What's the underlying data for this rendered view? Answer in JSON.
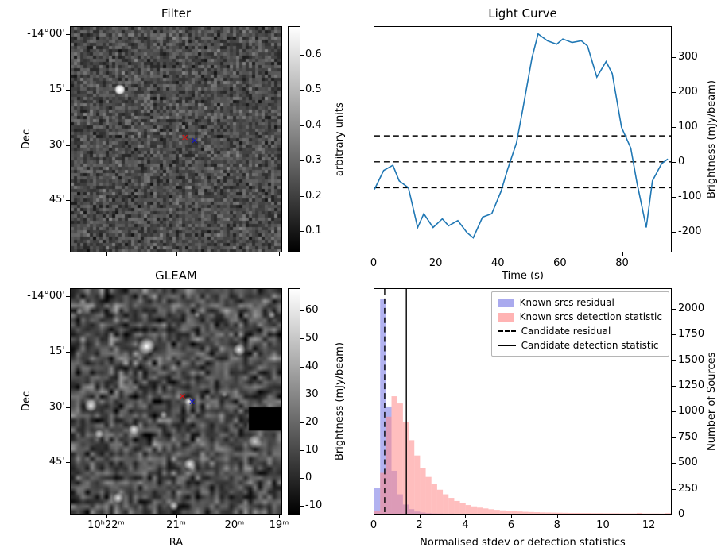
{
  "filter_panel": {
    "title": "Filter",
    "ylabel": "Dec",
    "dec_ticks": [
      {
        "label": "-14°00'",
        "f": 0.035
      },
      {
        "label": "15'",
        "f": 0.28
      },
      {
        "label": "30'",
        "f": 0.525
      },
      {
        "label": "45'",
        "f": 0.77
      }
    ],
    "colorbar": {
      "label": "arbitrary units",
      "vmin": 0.04,
      "vmax": 0.68,
      "ticks": [
        0.1,
        0.2,
        0.3,
        0.4,
        0.5,
        0.6
      ]
    },
    "markers": [
      {
        "name": "red-x",
        "color": "#dd1111",
        "fx": 0.543,
        "fy": 0.49
      },
      {
        "name": "blue-x",
        "color": "#1414cc",
        "fx": 0.588,
        "fy": 0.505
      }
    ],
    "bright_source": {
      "fx": 0.233,
      "fy": 0.278
    }
  },
  "gleam_panel": {
    "title": "GLEAM",
    "ylabel": "Dec",
    "xlabel": "RA",
    "dec_ticks": [
      {
        "label": "-14°00'",
        "f": 0.035
      },
      {
        "label": "15'",
        "f": 0.28
      },
      {
        "label": "30'",
        "f": 0.525
      },
      {
        "label": "45'",
        "f": 0.77
      }
    ],
    "ra_ticks": [
      {
        "label": "10ʰ22ᵐ",
        "f": 0.17
      },
      {
        "label": "21ᵐ",
        "f": 0.5
      },
      {
        "label": "20ᵐ",
        "f": 0.775
      },
      {
        "label": "19ᵐ",
        "f": 0.985
      }
    ],
    "colorbar": {
      "label": "Brightness (mJy/beam)",
      "vmin": -13,
      "vmax": 68,
      "ticks": [
        -10,
        0,
        10,
        20,
        30,
        40,
        50,
        60
      ]
    },
    "markers": [
      {
        "name": "red-x",
        "color": "#dd1111",
        "fx": 0.532,
        "fy": 0.478
      },
      {
        "name": "blue-x",
        "color": "#1414cc",
        "fx": 0.577,
        "fy": 0.502
      }
    ]
  },
  "chart_data": [
    {
      "id": "light_curve",
      "type": "line",
      "title": "Light Curve",
      "xlabel": "Time (s)",
      "ylabel": "Brightness (mJy/beam)",
      "xlim": [
        0,
        96
      ],
      "ylim": [
        -260,
        390
      ],
      "xticks": [
        0,
        20,
        40,
        60,
        80
      ],
      "yticks": [
        -200,
        -100,
        0,
        100,
        200,
        300
      ],
      "line_color": "#1f77b4",
      "threshold_lines": [
        75,
        0,
        -75
      ],
      "x": [
        0,
        3,
        6,
        8,
        11,
        14,
        16,
        19,
        22,
        24,
        27,
        30,
        32,
        35,
        38,
        41,
        43,
        46,
        48,
        51,
        53,
        56,
        59,
        61,
        64,
        67,
        69,
        72,
        75,
        77,
        80,
        83,
        85,
        88,
        90,
        93,
        95
      ],
      "y": [
        -80,
        -25,
        -10,
        -55,
        -75,
        -190,
        -150,
        -190,
        -165,
        -185,
        -170,
        -205,
        -220,
        -160,
        -150,
        -85,
        -25,
        55,
        150,
        300,
        370,
        350,
        340,
        355,
        345,
        350,
        335,
        245,
        290,
        255,
        100,
        40,
        -60,
        -190,
        -55,
        -5,
        8
      ]
    },
    {
      "id": "detection_histogram",
      "type": "bar",
      "xlabel": "Normalised stdev or detection statistics",
      "ylabel": "Number of Sources",
      "xlim": [
        0,
        13
      ],
      "ylim": [
        0,
        2200
      ],
      "xticks": [
        0,
        2,
        4,
        6,
        8,
        10,
        12
      ],
      "yticks": [
        0,
        250,
        500,
        750,
        1000,
        1250,
        1500,
        1750,
        2000
      ],
      "bin_width": 0.25,
      "series": [
        {
          "name": "Known srcs residual",
          "color": "#5555dd",
          "opacity": 0.45,
          "legend_color": "#aaaaee",
          "values": [
            250,
            2100,
            1050,
            420,
            190,
            90,
            45,
            22,
            12,
            6,
            3,
            2,
            1,
            1,
            0,
            0,
            0,
            0,
            0,
            0,
            0,
            0,
            0,
            0,
            0,
            0,
            0,
            0,
            0,
            0,
            0,
            0,
            0,
            0,
            0,
            0,
            0,
            0,
            0,
            0,
            0,
            0,
            0,
            0,
            0,
            0,
            0,
            0,
            0,
            0,
            0,
            0
          ]
        },
        {
          "name": "Known srcs detection statistic",
          "color": "#ff8888",
          "opacity": 0.55,
          "legend_color": "#ffb3b3",
          "values": [
            30,
            400,
            950,
            1150,
            1080,
            900,
            720,
            570,
            450,
            360,
            290,
            235,
            190,
            155,
            125,
            105,
            85,
            72,
            60,
            52,
            44,
            38,
            33,
            28,
            25,
            22,
            19,
            17,
            15,
            13,
            12,
            11,
            10,
            9,
            8,
            8,
            7,
            7,
            6,
            6,
            5,
            5,
            5,
            4,
            4,
            4,
            8,
            3,
            3,
            3,
            2,
            6
          ]
        }
      ],
      "vlines": [
        {
          "name": "Candidate residual",
          "x": 0.45,
          "style": "dashed"
        },
        {
          "name": "Candidate detection statistic",
          "x": 1.4,
          "style": "solid"
        }
      ]
    }
  ]
}
